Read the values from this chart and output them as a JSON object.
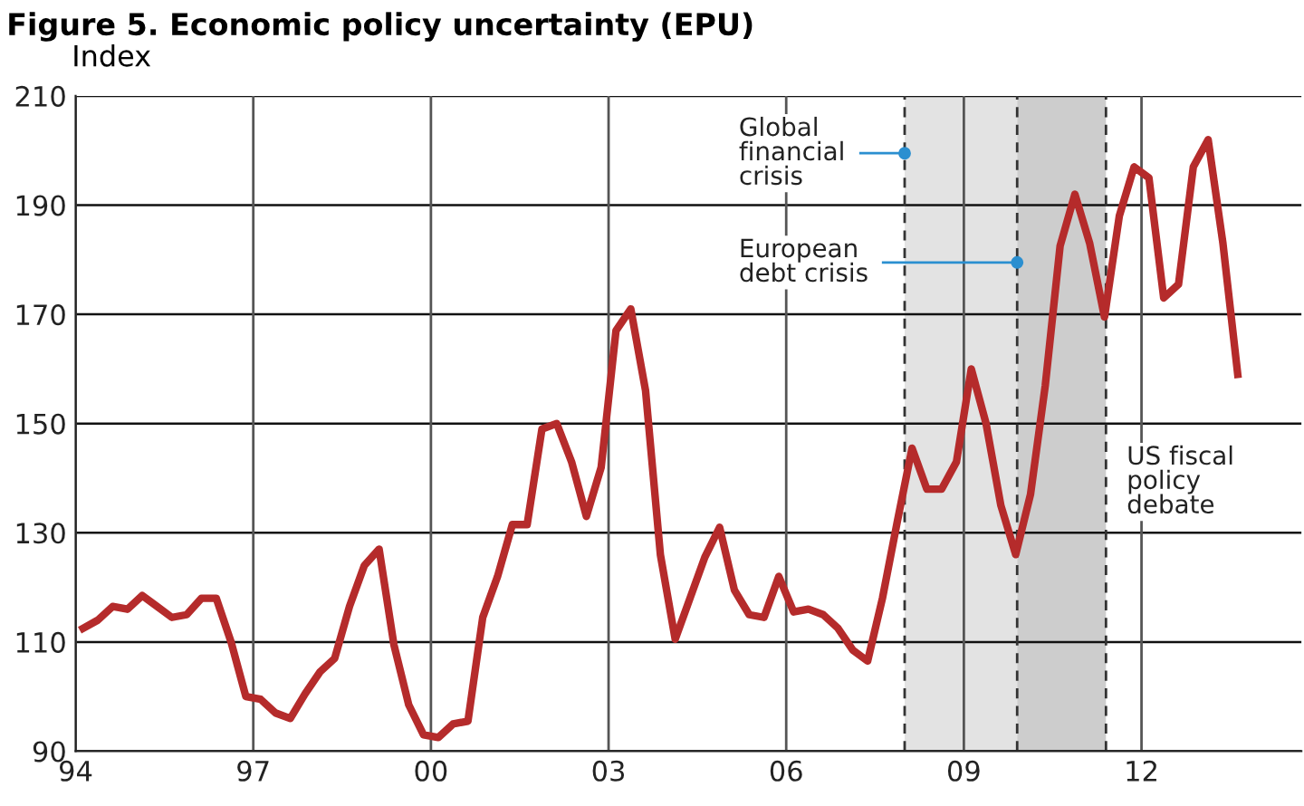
{
  "chart_data": {
    "type": "line",
    "title": "Figure 5. Economic policy uncertainty (EPU)",
    "ylabel": "Index",
    "x": [
      1994.125,
      1994.375,
      1994.625,
      1994.875,
      1995.125,
      1995.375,
      1995.625,
      1995.875,
      1996.125,
      1996.375,
      1996.625,
      1996.875,
      1997.125,
      1997.375,
      1997.625,
      1997.875,
      1998.125,
      1998.375,
      1998.625,
      1998.875,
      1999.125,
      1999.375,
      1999.625,
      1999.875,
      2000.125,
      2000.375,
      2000.625,
      2000.875,
      2001.125,
      2001.375,
      2001.625,
      2001.875,
      2002.125,
      2002.375,
      2002.625,
      2002.875,
      2003.125,
      2003.375,
      2003.625,
      2003.875,
      2004.125,
      2004.375,
      2004.625,
      2004.875,
      2005.125,
      2005.375,
      2005.625,
      2005.875,
      2006.125,
      2006.375,
      2006.625,
      2006.875,
      2007.125,
      2007.375,
      2007.625,
      2007.875,
      2008.125,
      2008.375,
      2008.625,
      2008.875,
      2009.125,
      2009.375,
      2009.625,
      2009.875,
      2010.125,
      2010.375,
      2010.625,
      2010.875,
      2011.125,
      2011.375,
      2011.625,
      2011.875,
      2012.125,
      2012.375,
      2012.625,
      2012.875,
      2013.125,
      2013.375,
      2013.625
    ],
    "series": [
      {
        "color": "#b52b2b",
        "values": [
          112.5,
          114,
          116.5,
          116,
          118.5,
          116.5,
          114.5,
          115,
          118,
          118,
          110,
          100,
          99.5,
          97,
          96,
          100.5,
          104.5,
          107,
          116.5,
          124,
          127,
          109.5,
          98.5,
          93,
          92.5,
          95,
          95.5,
          114.5,
          122,
          131.5,
          131.5,
          149,
          150,
          143,
          133,
          142,
          167,
          171,
          156,
          126,
          110.5,
          118,
          125.5,
          131,
          119.5,
          115,
          114.5,
          122,
          115.5,
          116,
          115,
          112.5,
          108.5,
          106.5,
          118,
          132,
          145.5,
          138,
          138,
          143,
          160,
          150,
          135,
          126,
          137,
          157,
          182.5,
          192,
          183,
          169.5,
          188,
          197,
          195,
          173,
          175.5,
          197,
          202,
          183,
          159
        ]
      }
    ],
    "xlim": [
      1994,
      2014.7
    ],
    "xticks": [
      {
        "value": 1994,
        "label": "94"
      },
      {
        "value": 1997,
        "label": "97"
      },
      {
        "value": 2000,
        "label": "00"
      },
      {
        "value": 2003,
        "label": "03"
      },
      {
        "value": 2006,
        "label": "06"
      },
      {
        "value": 2009,
        "label": "09"
      },
      {
        "value": 2012,
        "label": "12"
      }
    ],
    "ylim": [
      90,
      210
    ],
    "yticks": [
      90,
      110,
      130,
      150,
      170,
      190,
      210
    ],
    "grid": true,
    "marker": "none",
    "line_style": "solid",
    "bands": [
      {
        "axis": "x",
        "from": 2008.0,
        "to": 2009.9,
        "label": "Global\nfinancial\ncrisis",
        "color": "#e3e3e3"
      },
      {
        "axis": "x",
        "from": 2009.9,
        "to": 2011.4,
        "label": "European\ndebt crisis",
        "color": "#cdcdcd"
      }
    ],
    "ref_lines": [
      {
        "axis": "x",
        "value": 2008.0,
        "line_style": "dashed",
        "color": "#333333"
      },
      {
        "axis": "x",
        "value": 2009.9,
        "line_style": "dashed",
        "color": "#333333"
      },
      {
        "axis": "x",
        "value": 2011.4,
        "label": "US fiscal\npolicy\ndebate",
        "line_style": "dashed",
        "color": "#333333"
      }
    ]
  }
}
